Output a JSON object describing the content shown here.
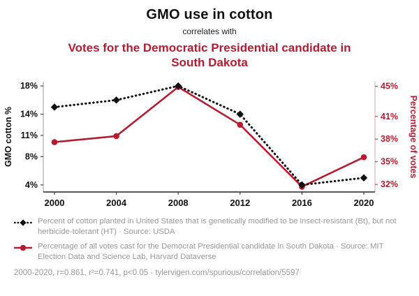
{
  "header": {
    "title": "GMO use in cotton",
    "subtitle": "correlates with",
    "correlate_title": "Votes for the Democratic Presidential candidate in South Dakota"
  },
  "colors": {
    "accent_red": "#b51c31",
    "series_black": "#111111",
    "legend_gray": "#979797"
  },
  "chart_data": {
    "type": "line",
    "x": [
      2000,
      2004,
      2008,
      2012,
      2016,
      2020
    ],
    "series": [
      {
        "name": "GMO cotton %",
        "axis": "left",
        "color": "#111111",
        "style": "dotted",
        "marker": "diamond",
        "values": [
          15,
          16,
          18,
          14,
          4,
          5
        ]
      },
      {
        "name": "Percentage of votes",
        "axis": "right",
        "color": "#b51c31",
        "style": "solid",
        "marker": "circle",
        "values": [
          37.6,
          38.4,
          44.9,
          39.9,
          31.7,
          35.6
        ]
      }
    ],
    "left_axis": {
      "label": "GMO cotton %",
      "ticks": [
        4,
        8,
        11,
        14,
        18
      ],
      "tick_suffix": "%",
      "range": [
        3,
        18.6
      ]
    },
    "right_axis": {
      "label": "Percentage of votes",
      "ticks": [
        32,
        35,
        38,
        41,
        45
      ],
      "tick_suffix": "%",
      "range": [
        31,
        45.6
      ]
    },
    "grid": false,
    "legend_position": "bottom"
  },
  "legend": [
    {
      "series": "gmo-cotton",
      "text": "Percent of cotton planted in United States that is genetically modified to be insect-resistant (Bt), but not herbicide-tolerant (HT) · Source: USDA"
    },
    {
      "series": "democrat-votes",
      "text": "Percentage of all votes cast for the Democrat Presidential candidate in South Dakota · Source: MIT Election Data and Science Lab, Harvard Dataverse"
    }
  ],
  "footer": {
    "text": "2000-2020, r=0.861, r²=0.741, p<0.05 · tylervigen.com/spurious/correlation/5597"
  }
}
